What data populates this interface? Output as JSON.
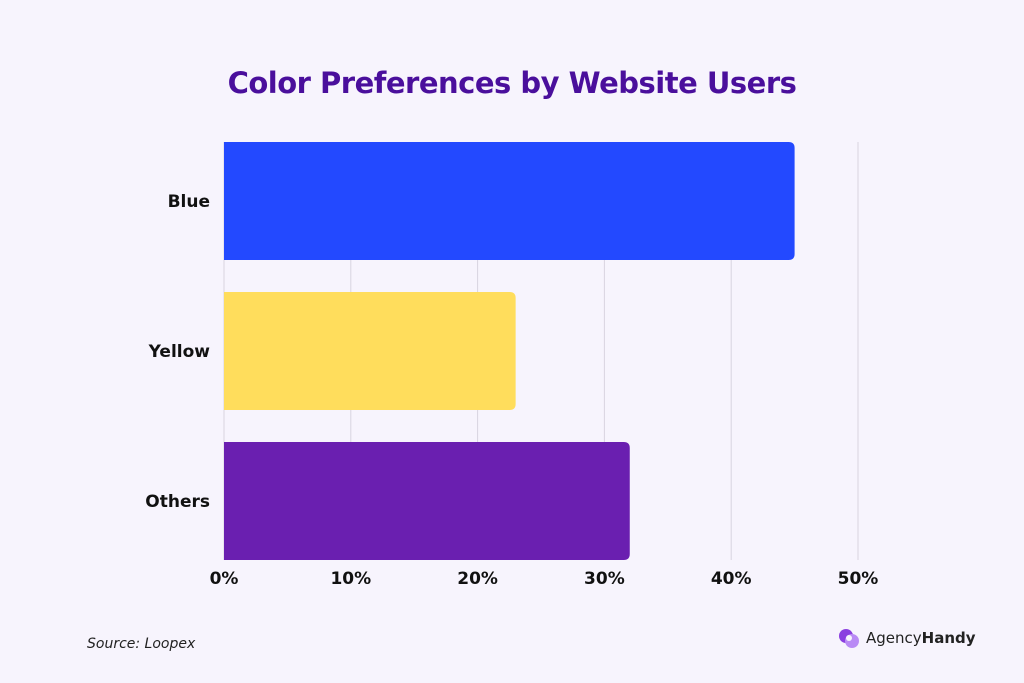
{
  "chart_data": {
    "type": "bar",
    "orientation": "horizontal",
    "title": "Color Preferences by Website Users",
    "categories": [
      "Blue",
      "Yellow",
      "Others"
    ],
    "values": [
      45,
      23,
      32
    ],
    "colors": [
      "#2349ff",
      "#ffdd5c",
      "#6a1fb0"
    ],
    "xlabel": "",
    "ylabel": "",
    "xlim": [
      0,
      50
    ],
    "xticks": [
      0,
      10,
      20,
      30,
      40,
      50
    ],
    "xtick_labels": [
      "0%",
      "10%",
      "20%",
      "30%",
      "40%",
      "50%"
    ],
    "grid": true,
    "value_unit": "%"
  },
  "source": "Source: Loopex",
  "brand": {
    "part1": "Agency",
    "part2": "Handy"
  }
}
